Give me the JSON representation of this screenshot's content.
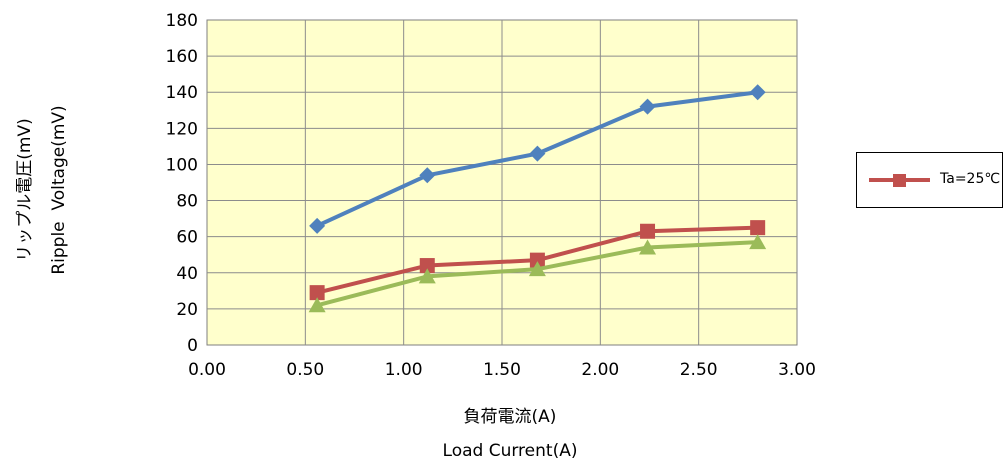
{
  "chart_data": {
    "type": "line",
    "x": [
      0.56,
      1.12,
      1.68,
      2.24,
      2.8
    ],
    "xlim": [
      0,
      3
    ],
    "ylim": [
      0,
      180
    ],
    "x_ticks": [
      "0.00",
      "0.50",
      "1.00",
      "1.50",
      "2.00",
      "2.50",
      "3.00"
    ],
    "y_ticks": [
      "0",
      "20",
      "40",
      "60",
      "80",
      "100",
      "120",
      "140",
      "160",
      "180"
    ],
    "xlabel_jp": "負荷電流(A)",
    "xlabel": "Load Current(A)",
    "ylabel_jp": "リップル電圧(mV)",
    "ylabel": "Ripple  Voltage(mV)",
    "grid": true,
    "plot_background": "#FFFFCC",
    "series": [
      {
        "values": [
          66,
          94,
          106,
          132,
          140
        ],
        "color": "#4F81BD",
        "marker": "diamond"
      },
      {
        "name": "Ta=25℃",
        "values": [
          29,
          44,
          47,
          63,
          65
        ],
        "color": "#C0504D",
        "marker": "square"
      },
      {
        "values": [
          22,
          38,
          42,
          54,
          57
        ],
        "color": "#9BBB59",
        "marker": "triangle"
      }
    ],
    "legend_position": "right"
  }
}
